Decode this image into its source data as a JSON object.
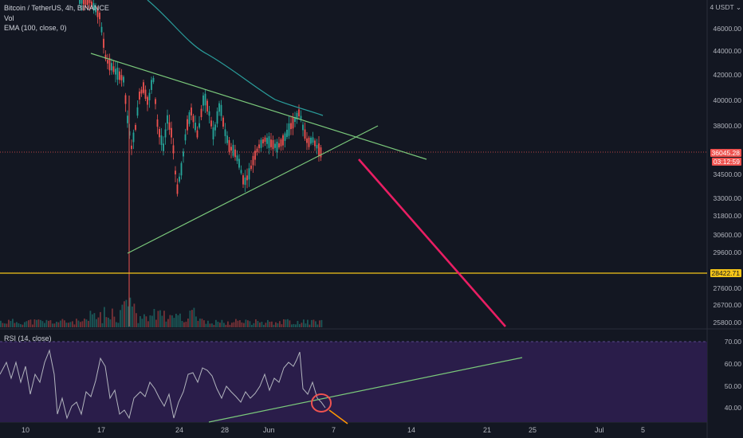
{
  "legend": {
    "symbol": "Bitcoin / TetherUS, 4h, BINANCE",
    "vol": "Vol",
    "ema": "EMA (100, close, 0)",
    "rsi": "RSI (14, close)"
  },
  "axis": {
    "currency": "4 USDT ⌄",
    "price_ticks": [
      "46000.00",
      "44000.00",
      "42000.00",
      "40000.00",
      "38000.00",
      "34500.00",
      "33000.00",
      "31800.00",
      "30600.00",
      "29600.00",
      "27600.00",
      "26700.00",
      "25800.00"
    ],
    "rsi_ticks": [
      "70.00",
      "60.00",
      "50.00",
      "40.00"
    ],
    "dates": [
      "10",
      "17",
      "24",
      "28",
      "Jun",
      "7",
      "14",
      "21",
      "25",
      "Jul",
      "5"
    ]
  },
  "tags": {
    "last_price": "36045.28",
    "countdown": "03:12:59",
    "support": "28422.71"
  },
  "colors": {
    "background": "#131722",
    "up": "#26a69a",
    "down": "#ef5350",
    "ema": "#2a9d9b",
    "trendline": "#7bc97b",
    "support_line": "#f5c518",
    "projection": "#e91e63",
    "rsi_line": "#b2b5be",
    "rsi_zone": "#2a1d4a",
    "rsi_circle": "#ef5350",
    "rsi_arrow": "#ff9800"
  }
}
